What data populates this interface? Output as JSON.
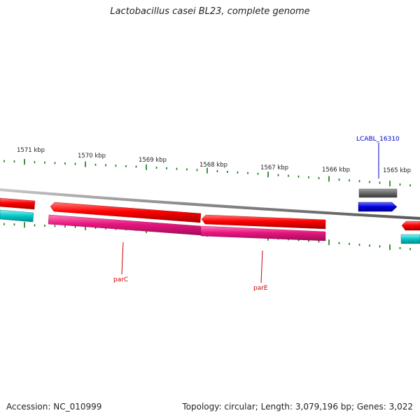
{
  "title": "Lactobacillus casei BL23, complete genome",
  "footer": {
    "accession": "Accession: NC_010999",
    "summary": "Topology: circular; Length: 3,079,196 bp; Genes: 3,022"
  },
  "ruler": {
    "labels": [
      "1571 kbp",
      "1570 kbp",
      "1569 kbp",
      "1568 kbp",
      "1567 kbp",
      "1566 kbp",
      "1565 kbp"
    ]
  },
  "gene_labels": {
    "parC": "parC",
    "parE": "parE",
    "lcabl": "LCABL_16310"
  },
  "colors": {
    "backbone": "#8a8a8a",
    "cds_red": "#ff0000",
    "gene_pink": "#e8157f",
    "locus_blue": "#0000e0",
    "locus_gray": "#666666",
    "cyan": "#00c8c8",
    "tick_green": "#0a7a0a",
    "label_red": "#cc0000",
    "label_blue": "#0000cc"
  }
}
